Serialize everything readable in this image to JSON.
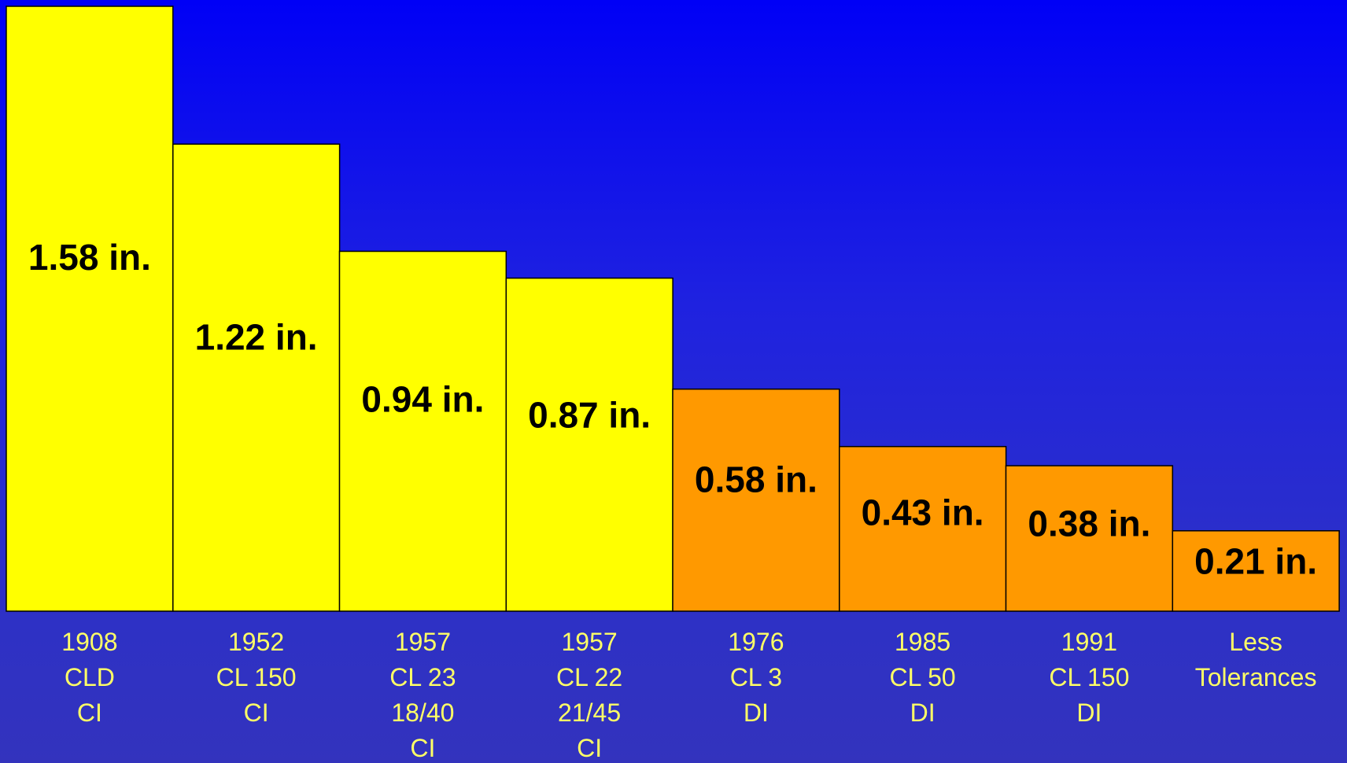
{
  "chart_data": {
    "type": "bar",
    "title": "",
    "xlabel": "",
    "ylabel": "",
    "ylim": [
      0,
      1.58
    ],
    "grid": false,
    "legend": "none",
    "categories": [
      [
        "1908",
        "CLD",
        "CI"
      ],
      [
        "1952",
        "CL 150",
        "CI"
      ],
      [
        "1957",
        "CL 23",
        "18/40",
        "CI"
      ],
      [
        "1957",
        "CL 22",
        "21/45",
        "CI"
      ],
      [
        "1976",
        "CL 3",
        "DI"
      ],
      [
        "1985",
        "CL 50",
        "DI"
      ],
      [
        "1991",
        "CL 150",
        "DI"
      ],
      [
        "Less",
        "Tolerances"
      ]
    ],
    "values": [
      1.58,
      1.22,
      0.94,
      0.87,
      0.58,
      0.43,
      0.38,
      0.21
    ],
    "value_labels": [
      "1.58 in.",
      "1.22 in.",
      "0.94 in.",
      "0.87 in.",
      "0.58 in.",
      "0.43 in.",
      "0.38 in.",
      "0.21 in."
    ],
    "colors": [
      "#ffff00",
      "#ffff00",
      "#ffff00",
      "#ffff00",
      "#ff9900",
      "#ff9900",
      "#ff9900",
      "#ff9900"
    ]
  }
}
